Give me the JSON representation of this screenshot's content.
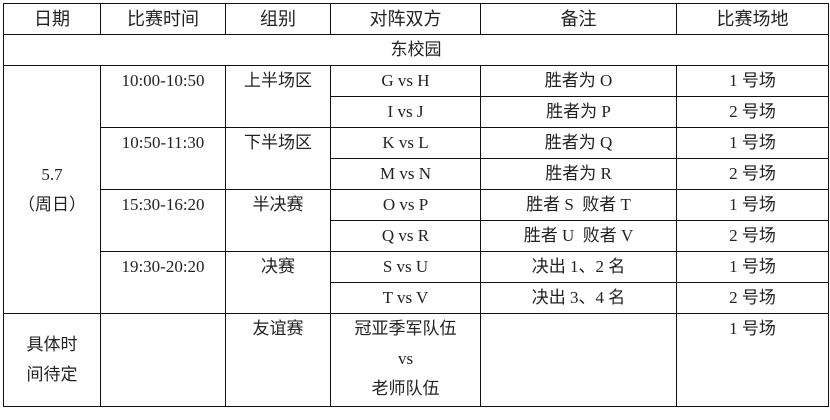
{
  "headers": [
    "日期",
    "比赛时间",
    "组别",
    "对阵双方",
    "备注",
    "比赛场地"
  ],
  "campus": "东校园",
  "date": {
    "line1": "5.7",
    "line2": "（周日）"
  },
  "slots": [
    {
      "time": "10:00-10:50",
      "group": "上半场区",
      "matches": [
        {
          "teams": "G vs H",
          "note": "胜者为 O",
          "venue": "1 号场"
        },
        {
          "teams": "I vs J",
          "note": "胜者为 P",
          "venue": "2 号场"
        }
      ]
    },
    {
      "time": "10:50-11:30",
      "group": "下半场区",
      "matches": [
        {
          "teams": "K vs L",
          "note": "胜者为 Q",
          "venue": "1 号场"
        },
        {
          "teams": "M vs N",
          "note": "胜者为 R",
          "venue": "2 号场"
        }
      ]
    },
    {
      "time": "15:30-16:20",
      "group": "半决赛",
      "matches": [
        {
          "teams": "O vs P",
          "note": "胜者 S  败者 T",
          "venue": "1 号场"
        },
        {
          "teams": "Q vs R",
          "note": "胜者 U  败者 V",
          "venue": "2 号场"
        }
      ]
    },
    {
      "time": "19:30-20:20",
      "group": "决赛",
      "matches": [
        {
          "teams": "S vs U",
          "note": "决出 1、2 名",
          "venue": "1 号场"
        },
        {
          "teams": "T vs V",
          "note": "决出 3、4 名",
          "venue": "2 号场"
        }
      ]
    }
  ],
  "friendly": {
    "date_line1": "具体时",
    "date_line2": "间待定",
    "time": "",
    "group": "友谊赛",
    "teams_line1": "冠亚季军队伍",
    "teams_line2": "vs",
    "teams_line3": "老师队伍",
    "note": "",
    "venue": "1 号场"
  }
}
